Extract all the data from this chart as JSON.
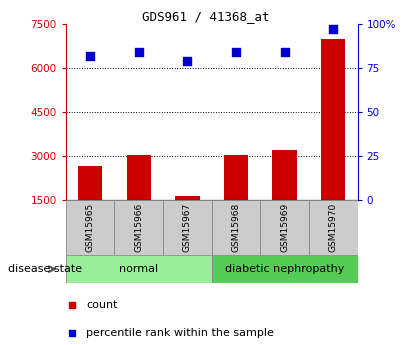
{
  "title": "GDS961 / 41368_at",
  "samples": [
    "GSM15965",
    "GSM15966",
    "GSM15967",
    "GSM15968",
    "GSM15969",
    "GSM15970"
  ],
  "counts": [
    2650,
    3050,
    1650,
    3050,
    3200,
    7000
  ],
  "percentile_ranks": [
    82,
    84,
    79,
    84,
    84,
    97
  ],
  "ylim_left": [
    1500,
    7500
  ],
  "ylim_right": [
    0,
    100
  ],
  "yticks_left": [
    1500,
    3000,
    4500,
    6000,
    7500
  ],
  "yticks_right": [
    0,
    25,
    50,
    75,
    100
  ],
  "ytick_labels_right": [
    "0",
    "25",
    "50",
    "75",
    "100%"
  ],
  "bar_color": "#cc0000",
  "dot_color": "#0000cc",
  "normal_color": "#99ee99",
  "dn_color": "#55cc55",
  "sample_box_color": "#cccccc",
  "disease_state_label": "disease state",
  "legend_count_label": "count",
  "legend_percentile_label": "percentile rank within the sample",
  "bar_width": 0.5,
  "grid_ticks": [
    3000,
    4500,
    6000
  ],
  "title_fontsize": 9,
  "tick_fontsize": 7.5,
  "sample_fontsize": 6.5,
  "legend_fontsize": 8,
  "disease_fontsize": 8
}
